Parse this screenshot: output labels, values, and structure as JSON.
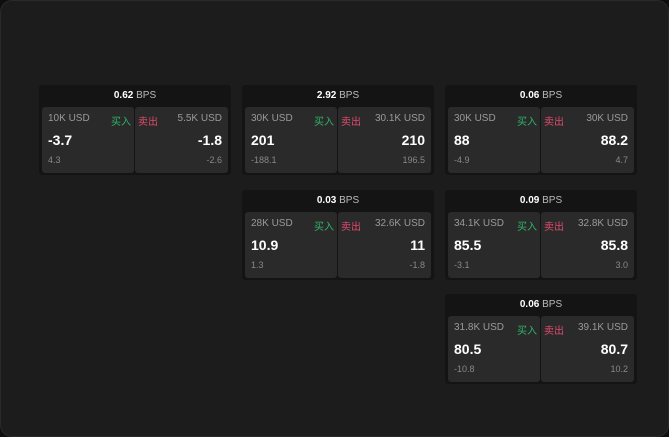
{
  "colors": {
    "buy": "#2fb46a",
    "sell": "#e04a6e"
  },
  "unit": "BPS",
  "buy_label": "买入",
  "sell_label": "卖出",
  "tiles": [
    {
      "spread": "0.62",
      "buy": {
        "size": "10K USD",
        "price": "-3.7",
        "change": "4.3"
      },
      "sell": {
        "size": "5.5K USD",
        "price": "-1.8",
        "change": "-2.6"
      }
    },
    {
      "spread": "2.92",
      "buy": {
        "size": "30K USD",
        "price": "201",
        "change": "-188.1"
      },
      "sell": {
        "size": "30.1K USD",
        "price": "210",
        "change": "196.5"
      }
    },
    {
      "spread": "0.06",
      "buy": {
        "size": "30K USD",
        "price": "88",
        "change": "-4.9"
      },
      "sell": {
        "size": "30K USD",
        "price": "88.2",
        "change": "4.7"
      }
    },
    {
      "spread": "0.03",
      "buy": {
        "size": "28K USD",
        "price": "10.9",
        "change": "1.3"
      },
      "sell": {
        "size": "32.6K USD",
        "price": "11",
        "change": "-1.8"
      }
    },
    {
      "spread": "0.09",
      "buy": {
        "size": "34.1K USD",
        "price": "85.5",
        "change": "-3.1"
      },
      "sell": {
        "size": "32.8K USD",
        "price": "85.8",
        "change": "3.0"
      }
    },
    {
      "spread": "0.06",
      "buy": {
        "size": "31.8K USD",
        "price": "80.5",
        "change": "-10.8"
      },
      "sell": {
        "size": "39.1K USD",
        "price": "80.7",
        "change": "10.2"
      }
    }
  ]
}
